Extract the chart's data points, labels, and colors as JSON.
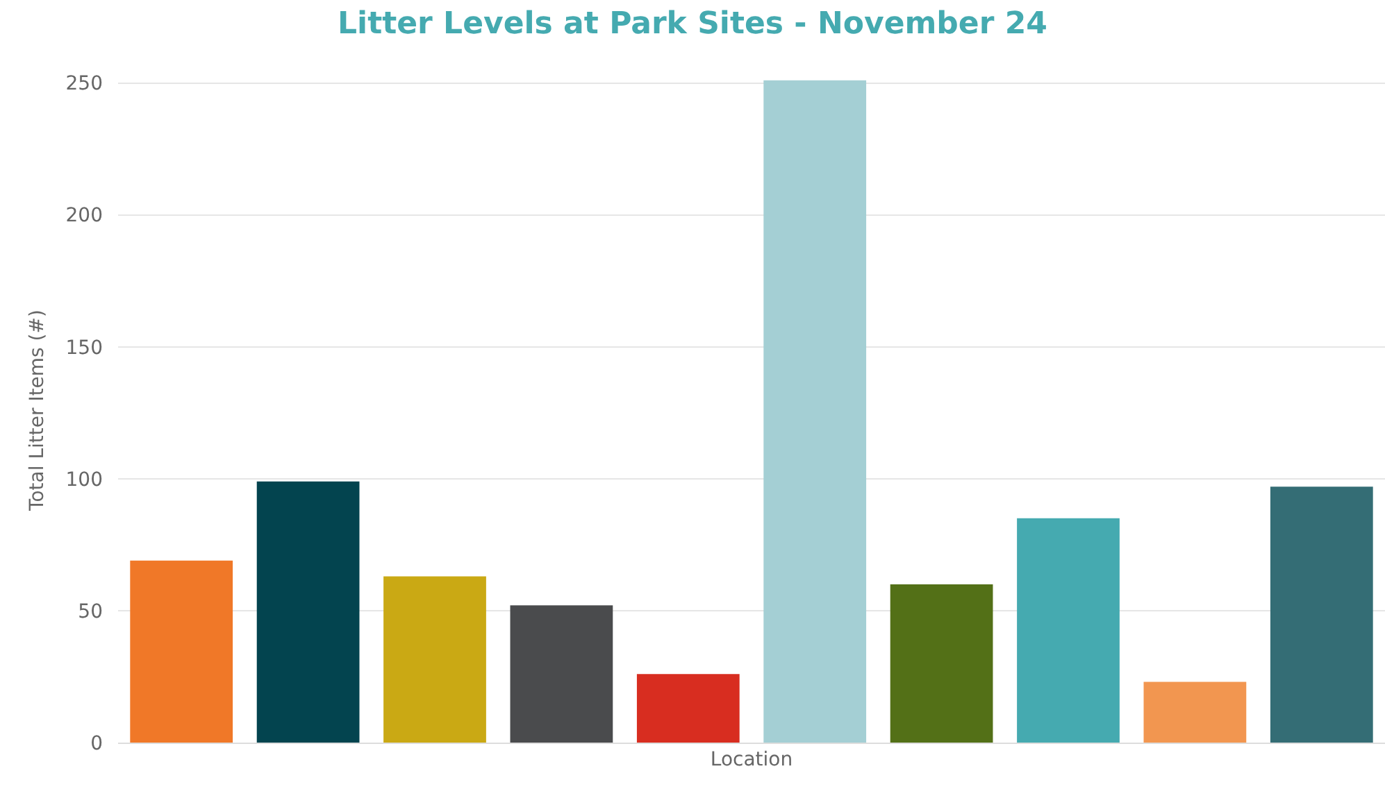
{
  "chart_data": {
    "type": "bar",
    "title": "Litter Levels at Park Sites - November 24",
    "xlabel": "Location",
    "ylabel": "Total Litter Items (#)",
    "categories": [
      null,
      null,
      null,
      null,
      null,
      null,
      null,
      null,
      null,
      null
    ],
    "values": [
      69,
      99,
      63,
      52,
      26,
      251,
      60,
      85,
      23,
      97
    ],
    "colors": [
      "#f07828",
      "#03444f",
      "#caa914",
      "#4a4b4d",
      "#d82d20",
      "#a4cfd4",
      "#537017",
      "#45aab0",
      "#f29650",
      "#346d75"
    ],
    "ylim": [
      0,
      252
    ],
    "yticks": [
      0,
      50,
      100,
      150,
      200,
      250
    ],
    "grid": "y",
    "legend": false
  }
}
